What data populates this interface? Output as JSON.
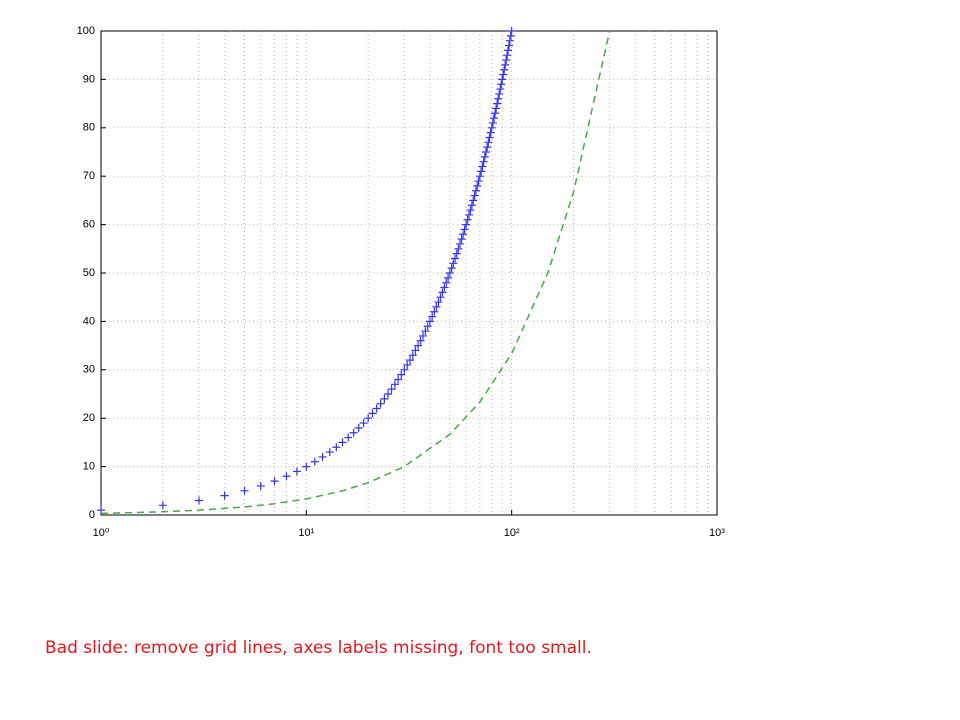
{
  "chart_data": {
    "type": "scatter-line",
    "xlog": true,
    "grid": true,
    "xlim": [
      1,
      1000
    ],
    "ylim": [
      0,
      100
    ],
    "xticks": [
      {
        "value": 1,
        "label": "10⁰"
      },
      {
        "value": 10,
        "label": "10¹"
      },
      {
        "value": 100,
        "label": "10²"
      },
      {
        "value": 1000,
        "label": "10³"
      }
    ],
    "xminorticks": [
      2,
      3,
      4,
      5,
      6,
      7,
      8,
      9,
      20,
      30,
      40,
      50,
      60,
      70,
      80,
      90,
      200,
      300,
      400,
      500,
      600,
      700,
      800,
      900
    ],
    "yticks": [
      0,
      10,
      20,
      30,
      40,
      50,
      60,
      70,
      80,
      90,
      100
    ],
    "series": [
      {
        "style": "plus",
        "color": "#3333ee",
        "x": [
          1,
          2,
          3,
          4,
          5,
          6,
          7,
          8,
          9,
          10,
          11,
          12,
          13,
          14,
          15,
          16,
          17,
          18,
          19,
          20,
          21,
          22,
          23,
          24,
          25,
          26,
          27,
          28,
          29,
          30,
          31,
          32,
          33,
          34,
          35,
          36,
          37,
          38,
          39,
          40,
          41,
          42,
          43,
          44,
          45,
          46,
          47,
          48,
          49,
          50,
          51,
          52,
          53,
          54,
          55,
          56,
          57,
          58,
          59,
          60,
          61,
          62,
          63,
          64,
          65,
          66,
          67,
          68,
          69,
          70,
          71,
          72,
          73,
          74,
          75,
          76,
          77,
          78,
          79,
          80,
          81,
          82,
          83,
          84,
          85,
          86,
          87,
          88,
          89,
          90,
          91,
          92,
          93,
          94,
          95,
          96,
          97,
          98,
          99,
          100
        ],
        "values": [
          1,
          2,
          3,
          4,
          5,
          6,
          7,
          8,
          9,
          10,
          11,
          12,
          13,
          14,
          15,
          16,
          17,
          18,
          19,
          20,
          21,
          22,
          23,
          24,
          25,
          26,
          27,
          28,
          29,
          30,
          31,
          32,
          33,
          34,
          35,
          36,
          37,
          38,
          39,
          40,
          41,
          42,
          43,
          44,
          45,
          46,
          47,
          48,
          49,
          50,
          51,
          52,
          53,
          54,
          55,
          56,
          57,
          58,
          59,
          60,
          61,
          62,
          63,
          64,
          65,
          66,
          67,
          68,
          69,
          70,
          71,
          72,
          73,
          74,
          75,
          76,
          77,
          78,
          79,
          80,
          81,
          82,
          83,
          84,
          85,
          86,
          87,
          88,
          89,
          90,
          91,
          92,
          93,
          94,
          95,
          96,
          97,
          98,
          99,
          100
        ]
      },
      {
        "style": "dashed",
        "color": "#44aa44",
        "x": [
          1,
          2,
          3,
          5,
          7,
          10,
          15,
          20,
          30,
          50,
          70,
          100,
          150,
          200,
          300
        ],
        "values": [
          0.33,
          0.67,
          1,
          1.67,
          2.33,
          3.33,
          5,
          6.67,
          10,
          16.67,
          23.33,
          33.33,
          50,
          66.67,
          100
        ]
      }
    ]
  },
  "caption": "Bad slide: remove grid lines, axes labels missing, font too small."
}
